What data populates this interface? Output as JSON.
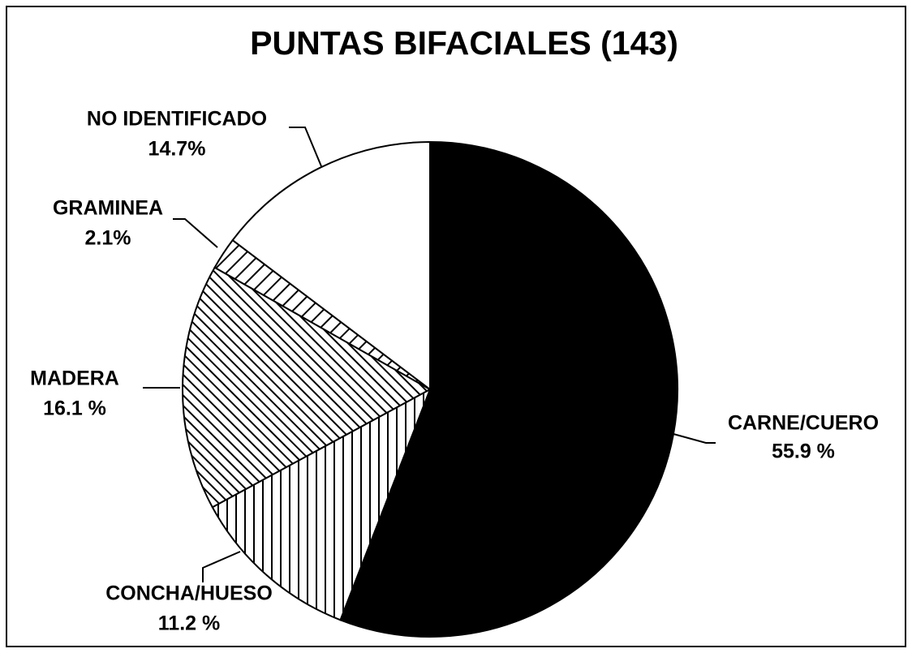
{
  "chart_data": {
    "type": "pie",
    "title": "PUNTAS BIFACIALES (143)",
    "categories": [
      "CARNE/CUERO",
      "CONCHA/HUESO",
      "MADERA",
      "GRAMINEA",
      "NO IDENTIFICADO"
    ],
    "values": [
      55.9,
      11.2,
      16.1,
      2.1,
      14.7
    ],
    "value_labels": [
      "55.9 %",
      "11.2 %",
      "16.1 %",
      "2.1%",
      "14.7%"
    ],
    "colors": [
      "#000000",
      "#000000",
      "#000000",
      "#000000",
      "#ffffff"
    ],
    "patterns": [
      "solid",
      "vertical",
      "diagonal-down",
      "diagonal-up",
      "solid"
    ]
  }
}
